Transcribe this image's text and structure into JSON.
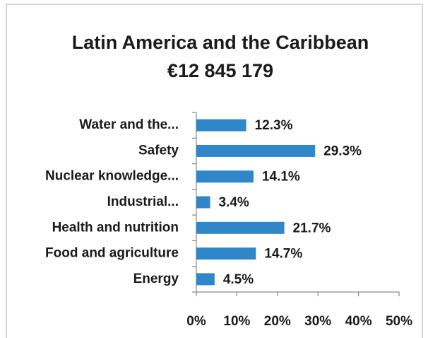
{
  "chart_data": {
    "type": "bar",
    "orientation": "horizontal",
    "title": "Latin America and the Caribbean",
    "subtitle": "€12 845 179",
    "categories": [
      "Water and the...",
      "Safety",
      "Nuclear knowledge...",
      "Industrial...",
      "Health and nutrition",
      "Food and agriculture",
      "Energy"
    ],
    "values": [
      12.3,
      29.3,
      14.1,
      3.4,
      21.7,
      14.7,
      4.5
    ],
    "value_labels": [
      "12.3%",
      "29.3%",
      "14.1%",
      "3.4%",
      "21.7%",
      "14.7%",
      "4.5%"
    ],
    "color": "#2f87c9",
    "xlim": [
      0,
      50
    ],
    "xticks": [
      {
        "value": 0,
        "label": "0%"
      },
      {
        "value": 10,
        "label": "10%"
      },
      {
        "value": 20,
        "label": "20%"
      },
      {
        "value": 30,
        "label": "30%"
      },
      {
        "value": 40,
        "label": "40%"
      },
      {
        "value": 50,
        "label": "50%"
      }
    ],
    "grid": false
  }
}
